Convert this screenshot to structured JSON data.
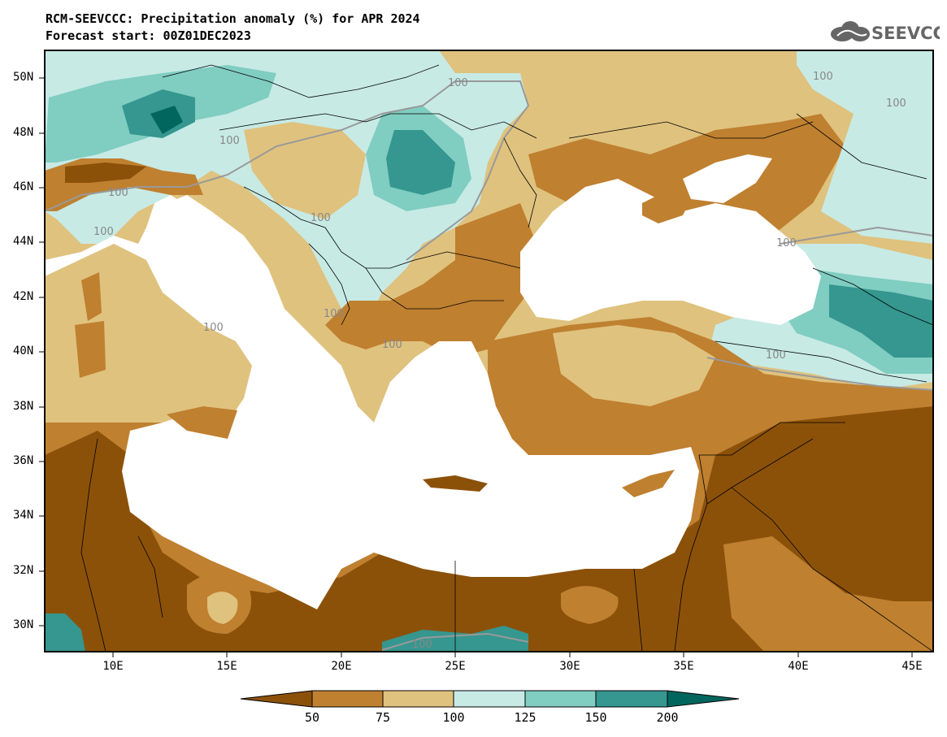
{
  "title_line1": "RCM-SEEVCCC: Precipitation anomaly (%) for APR 2024",
  "title_line2": "Forecast start: 00Z01DEC2023",
  "logo_text": "SEEVCCC",
  "logo_icon": "cloud-icon",
  "lat_labels": [
    "50N",
    "48N",
    "46N",
    "44N",
    "42N",
    "40N",
    "38N",
    "36N",
    "34N",
    "32N",
    "30N"
  ],
  "lon_labels": [
    "10E",
    "15E",
    "20E",
    "25E",
    "30E",
    "35E",
    "40E",
    "45E"
  ],
  "contour_labels": [
    "100",
    "100",
    "100",
    "100",
    "100",
    "100",
    "100",
    "100",
    "100",
    "100",
    "100",
    "100",
    "100"
  ],
  "colorbar": {
    "labels": [
      "50",
      "75",
      "100",
      "125",
      "150",
      "200"
    ],
    "colors": [
      "#8c5109",
      "#bf8030",
      "#dfc27e",
      "#c7eae5",
      "#80cdc1",
      "#35978f",
      "#01665e"
    ]
  },
  "colors": {
    "very_dry": "#8c5109",
    "dry": "#bf8030",
    "slightly_dry": "#dfc27e",
    "slightly_wet": "#c7eae5",
    "wet": "#80cdc1",
    "very_wet": "#35978f",
    "extremely_wet": "#01665e",
    "sea": "#ffffff"
  }
}
